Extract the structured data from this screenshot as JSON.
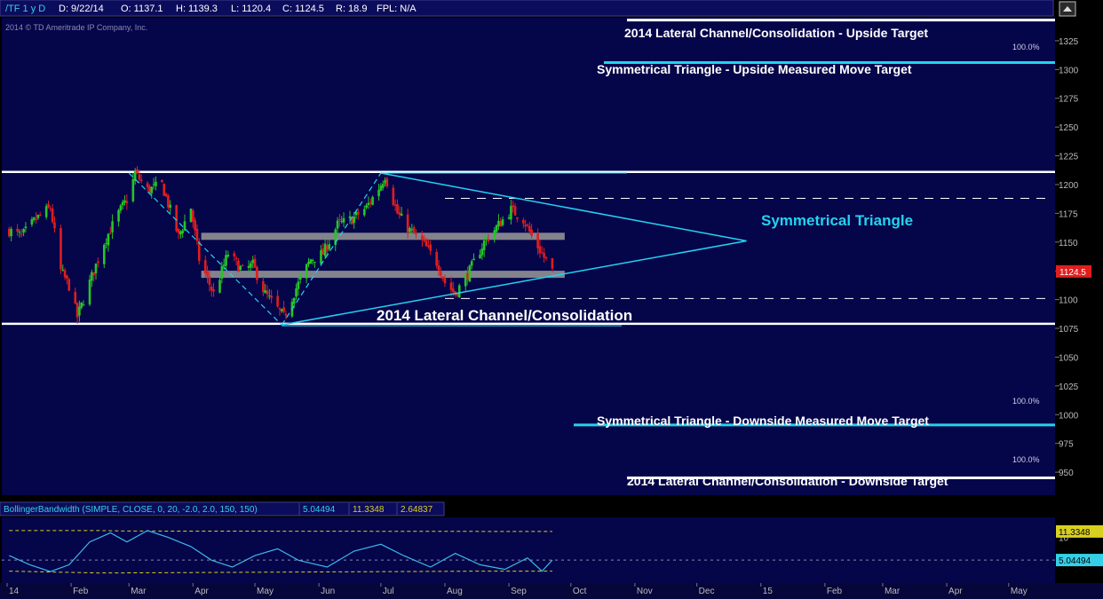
{
  "header": {
    "symbol": "/TF 1 y D",
    "date": "D: 9/22/14",
    "open": "O: 1137.1",
    "high": "H: 1139.3",
    "low": "L: 1120.4",
    "close": "C: 1124.5",
    "range": "R: 18.9",
    "fpl": "FPL: N/A"
  },
  "copyright": "2014 © TD Ameritrade IP Company, Inc.",
  "colors": {
    "background": "#05054a",
    "bull": "#28c428",
    "bear": "#e01e1e",
    "cyan": "#22d3ee",
    "white": "#ffffff",
    "price_flag": "#e01e1e",
    "bb_line": "#3db8e8",
    "bb_band": "#d8d020"
  },
  "chart_data": [
    {
      "type": "candlestick",
      "title": "",
      "ylim": [
        930,
        1345
      ],
      "y_ticks": [
        950,
        975,
        1000,
        1025,
        1050,
        1075,
        1100,
        1125,
        1150,
        1175,
        1200,
        1225,
        1250,
        1275,
        1300,
        1325
      ],
      "x_ticks": [
        "14",
        "Feb",
        "Mar",
        "Apr",
        "May",
        "Jun",
        "Jul",
        "Aug",
        "Sep",
        "Oct",
        "Nov",
        "Dec",
        "15",
        "Feb",
        "Mar",
        "Apr",
        "May"
      ],
      "x_range": [
        "2014-01-01",
        "2015-05-20"
      ],
      "last_price": 1124.5,
      "price_path": [
        [
          "2014-01-02",
          1160
        ],
        [
          "2014-01-08",
          1155
        ],
        [
          "2014-01-15",
          1170
        ],
        [
          "2014-01-22",
          1180
        ],
        [
          "2014-01-27",
          1125
        ],
        [
          "2014-01-31",
          1112
        ],
        [
          "2014-02-04",
          1085
        ],
        [
          "2014-02-10",
          1115
        ],
        [
          "2014-02-17",
          1150
        ],
        [
          "2014-02-24",
          1175
        ],
        [
          "2014-03-01",
          1190
        ],
        [
          "2014-03-04",
          1210
        ],
        [
          "2014-03-10",
          1195
        ],
        [
          "2014-03-17",
          1200
        ],
        [
          "2014-03-25",
          1155
        ],
        [
          "2014-03-31",
          1180
        ],
        [
          "2014-04-04",
          1135
        ],
        [
          "2014-04-11",
          1105
        ],
        [
          "2014-04-18",
          1140
        ],
        [
          "2014-04-25",
          1125
        ],
        [
          "2014-04-30",
          1130
        ],
        [
          "2014-05-06",
          1105
        ],
        [
          "2014-05-15",
          1085
        ],
        [
          "2014-05-21",
          1110
        ],
        [
          "2014-05-28",
          1135
        ],
        [
          "2014-06-03",
          1140
        ],
        [
          "2014-06-10",
          1165
        ],
        [
          "2014-06-17",
          1170
        ],
        [
          "2014-06-24",
          1180
        ],
        [
          "2014-07-01",
          1200
        ],
        [
          "2014-07-03",
          1208
        ],
        [
          "2014-07-09",
          1175
        ],
        [
          "2014-07-15",
          1160
        ],
        [
          "2014-07-21",
          1150
        ],
        [
          "2014-07-29",
          1130
        ],
        [
          "2014-08-01",
          1115
        ],
        [
          "2014-08-06",
          1105
        ],
        [
          "2014-08-13",
          1125
        ],
        [
          "2014-08-20",
          1150
        ],
        [
          "2014-08-27",
          1165
        ],
        [
          "2014-09-02",
          1178
        ],
        [
          "2014-09-08",
          1170
        ],
        [
          "2014-09-12",
          1155
        ],
        [
          "2014-09-17",
          1140
        ],
        [
          "2014-09-22",
          1124.5
        ]
      ],
      "levels": [
        {
          "name": "2014 Lateral Channel/Consolidation - Upside Target",
          "value": 1343,
          "color": "white"
        },
        {
          "name": "Symmetrical Triangle - Upside Measured Move Target",
          "value": 1306,
          "color": "cyan"
        },
        {
          "name": "channel top",
          "value": 1211,
          "color": "white"
        },
        {
          "name": "channel bottom",
          "value": 1079,
          "color": "white"
        },
        {
          "name": "Symmetrical Triangle - Downside Measured Move Target",
          "value": 991,
          "color": "cyan"
        },
        {
          "name": "2014 Lateral Channel/Consolidation - Downside Target",
          "value": 945,
          "color": "white"
        }
      ],
      "dashed_levels": [
        1188,
        1101
      ],
      "gray_bands": [
        {
          "from": "2014-04-05",
          "to": "2014-09-28",
          "value": 1155
        },
        {
          "from": "2014-04-05",
          "to": "2014-09-28",
          "value": 1122
        }
      ],
      "triangle": {
        "upper_from": [
          "2014-07-01",
          1210
        ],
        "lower_from": [
          "2014-05-14",
          1078
        ],
        "apex": [
          "2014-12-25",
          1151
        ]
      },
      "annotations": {
        "symmetrical_triangle": "Symmetrical Triangle",
        "channel": "2014 Lateral Channel/Consolidation",
        "upside_target": "2014 Lateral Channel/Consolidation - Upside Target",
        "upside_mm_target": "Symmetrical Triangle - Upside Measured Move Target",
        "downside_mm_target": "Symmetrical Triangle - Downside Measured Move Target",
        "downside_target": "2014 Lateral Channel/Consolidation - Downside Target",
        "pct_upside": "100.0%",
        "pct_downside_mm": "100.0%",
        "pct_downside": "100.0%"
      }
    },
    {
      "type": "line",
      "title": "BollingerBandwidth (SIMPLE, CLOSE, 0, 20, -2.0, 2.0, 150, 150)",
      "header_values": [
        "5.04494",
        "11.3348",
        "2.64837"
      ],
      "ylim": [
        0,
        14
      ],
      "y_ticks": [
        10
      ],
      "flag_values": [
        "11.3348",
        "5.04494"
      ],
      "bandwidth_path": [
        [
          "2014-01-02",
          6.0
        ],
        [
          "2014-01-12",
          4.0
        ],
        [
          "2014-01-22",
          2.5
        ],
        [
          "2014-01-31",
          4.0
        ],
        [
          "2014-02-10",
          9.0
        ],
        [
          "2014-02-20",
          11.0
        ],
        [
          "2014-02-28",
          9.0
        ],
        [
          "2014-03-10",
          11.5
        ],
        [
          "2014-03-20",
          10.0
        ],
        [
          "2014-03-31",
          8.0
        ],
        [
          "2014-04-10",
          5.0
        ],
        [
          "2014-04-20",
          3.5
        ],
        [
          "2014-05-01",
          6.0
        ],
        [
          "2014-05-12",
          7.5
        ],
        [
          "2014-05-22",
          5.0
        ],
        [
          "2014-06-05",
          3.5
        ],
        [
          "2014-06-18",
          7.0
        ],
        [
          "2014-07-01",
          8.5
        ],
        [
          "2014-07-12",
          6.0
        ],
        [
          "2014-07-25",
          3.5
        ],
        [
          "2014-08-06",
          6.5
        ],
        [
          "2014-08-18",
          4.0
        ],
        [
          "2014-08-30",
          3.0
        ],
        [
          "2014-09-10",
          5.5
        ],
        [
          "2014-09-17",
          2.6
        ],
        [
          "2014-09-22",
          5.04
        ]
      ],
      "upper_band": [
        [
          "2014-01-02",
          11.5
        ],
        [
          "2014-02-15",
          11.5
        ],
        [
          "2014-03-01",
          11.4
        ],
        [
          "2014-09-22",
          11.3
        ]
      ],
      "lower_band": [
        [
          "2014-01-02",
          2.6
        ],
        [
          "2014-02-15",
          2.2
        ],
        [
          "2014-08-20",
          2.6
        ],
        [
          "2014-09-22",
          2.6
        ]
      ]
    }
  ]
}
